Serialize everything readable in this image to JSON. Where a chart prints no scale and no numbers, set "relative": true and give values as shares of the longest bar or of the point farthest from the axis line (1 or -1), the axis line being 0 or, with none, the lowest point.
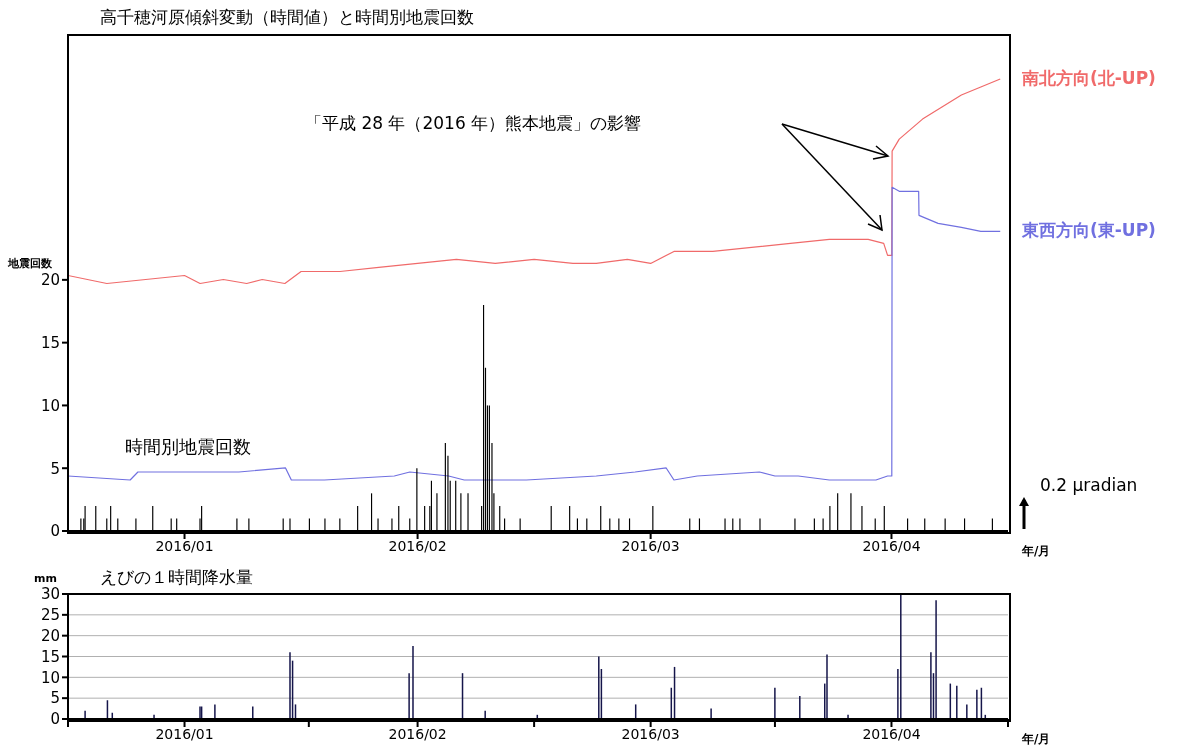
{
  "chart_data": [
    {
      "type": "line",
      "relative": true,
      "tick_labels": "x",
      "title": "高千穂河原傾斜変動（時間値）と時間別地震回数",
      "xlim": [
        "2016-01-01",
        "2016-05-01"
      ],
      "xticks": [
        {
          "value": "2016-01-16",
          "label": "2016/01"
        },
        {
          "value": "2016-02-15",
          "label": "2016/02"
        },
        {
          "value": "2016-03-16",
          "label": "2016/03"
        },
        {
          "value": "2016-04-16",
          "label": "2016/04"
        }
      ],
      "annotations": [
        "「平成 28 年（2016 年）熊本地震」の影響",
        "0.2 μradian"
      ],
      "series": [
        {
          "name": "南北方向(北-UP)",
          "color": "#f06a6a",
          "x": [
            "2016-01-01T00:00",
            "2016-01-06T00:00",
            "2016-01-11T00:00",
            "2016-01-16T00:00",
            "2016-01-18T00:00",
            "2016-01-21T00:00",
            "2016-01-24T00:00",
            "2016-01-26T00:00",
            "2016-01-28T22:00",
            "2016-01-31T00:00",
            "2016-02-02T00:00",
            "2016-02-05T00:00",
            "2016-02-10T00:00",
            "2016-02-15T00:00",
            "2016-02-20T00:00",
            "2016-02-25T00:00",
            "2016-03-01T00:00",
            "2016-03-06T00:00",
            "2016-03-09T00:00",
            "2016-03-13T00:00",
            "2016-03-16T00:00",
            "2016-03-19T00:00",
            "2016-03-24T00:00",
            "2016-03-29T00:00",
            "2016-04-03T00:00",
            "2016-04-08T00:00",
            "2016-04-13T00:00",
            "2016-04-15T00:00",
            "2016-04-15T12:00",
            "2016-04-16T01:00",
            "2016-04-16T02:00",
            "2016-04-17T00:00",
            "2016-04-20T00:00",
            "2016-04-22T12:00",
            "2016-04-25T00:00",
            "2016-04-27T12:00",
            "2016-04-30T00:00"
          ],
          "values": [
            0.51,
            0.49,
            0.5,
            0.51,
            0.49,
            0.5,
            0.49,
            0.5,
            0.49,
            0.52,
            0.52,
            0.52,
            0.53,
            0.54,
            0.55,
            0.54,
            0.55,
            0.54,
            0.54,
            0.55,
            0.54,
            0.57,
            0.57,
            0.58,
            0.59,
            0.6,
            0.6,
            0.59,
            0.56,
            0.56,
            0.82,
            0.85,
            0.9,
            0.93,
            0.96,
            0.98,
            1
          ]
        },
        {
          "name": "東西方向(東-UP)",
          "color": "#7070e0",
          "x": [
            "2016-01-01T00:00",
            "2016-01-09T00:00",
            "2016-01-10T00:00",
            "2016-01-18T00:00",
            "2016-01-23T00:00",
            "2016-01-29T00:00",
            "2016-01-29T18:00",
            "2016-02-03T00:00",
            "2016-02-12T00:00",
            "2016-02-14T00:00",
            "2016-02-19T00:00",
            "2016-02-21T00:00",
            "2016-02-29T00:00",
            "2016-03-09T00:00",
            "2016-03-14T00:00",
            "2016-03-18T00:00",
            "2016-03-19T00:00",
            "2016-03-22T00:00",
            "2016-03-30T00:00",
            "2016-04-01T00:00",
            "2016-04-04T00:00",
            "2016-04-08T00:00",
            "2016-04-14T00:00",
            "2016-04-15T12:00",
            "2016-04-16T01:00",
            "2016-04-16T02:00",
            "2016-04-17T00:00",
            "2016-04-18T00:00",
            "2016-04-19T12:00",
            "2016-04-19T13:00",
            "2016-04-22T00:00",
            "2016-04-25T00:00",
            "2016-04-27T12:00",
            "2016-04-30T00:00"
          ],
          "values": [
            0.01,
            0,
            0.02,
            0.02,
            0.02,
            0.03,
            0,
            0,
            0.01,
            0.02,
            0.01,
            0,
            0,
            0.01,
            0.02,
            0.03,
            0,
            0.01,
            0.02,
            0.01,
            0.01,
            0,
            0,
            0.01,
            0.01,
            0.73,
            0.72,
            0.72,
            0.72,
            0.66,
            0.64,
            0.63,
            0.62,
            0.62
          ]
        }
      ]
    },
    {
      "type": "bar",
      "ylabel": "地震回数",
      "xlabel": "年/月",
      "xlim": [
        "2016-01-01",
        "2016-05-01"
      ],
      "ylim": [
        0,
        39.5
      ],
      "yticks": [
        0,
        5,
        10,
        15,
        20
      ],
      "series": [
        {
          "name": "時間別地震回数",
          "color": "#000000",
          "x": [
            "2016-01-02T16:00",
            "2016-01-03T01:00",
            "2016-01-03T05:00",
            "2016-01-04T14:00",
            "2016-01-06T00:00",
            "2016-01-06T12:00",
            "2016-01-07T10:00",
            "2016-01-09T18:00",
            "2016-01-11T22:00",
            "2016-01-14T07:00",
            "2016-01-15T00:00",
            "2016-01-18T00:00",
            "2016-01-18T05:00",
            "2016-01-22T18:00",
            "2016-01-24T07:00",
            "2016-01-28T17:00",
            "2016-01-29T14:00",
            "2016-02-01T02:00",
            "2016-02-03T02:00",
            "2016-02-05T00:00",
            "2016-02-07T07:00",
            "2016-02-09T02:00",
            "2016-02-09T22:00",
            "2016-02-11T17:00",
            "2016-02-12T14:00",
            "2016-02-14T00:00",
            "2016-02-14T22:00",
            "2016-02-15T22:00",
            "2016-02-16T14:00",
            "2016-02-16T19:00",
            "2016-02-17T12:00",
            "2016-02-18T14:00",
            "2016-02-18T22:00",
            "2016-02-19T05:00",
            "2016-02-19T22:00",
            "2016-02-20T14:00",
            "2016-02-21T12:00",
            "2016-02-23T06:00",
            "2016-02-23T12:00",
            "2016-02-23T18:00",
            "2016-02-24T00:00",
            "2016-02-24T06:00",
            "2016-02-24T14:00",
            "2016-02-24T20:00",
            "2016-02-25T14:00",
            "2016-02-26T05:00",
            "2016-02-28T05:00",
            "2016-03-03T05:00",
            "2016-03-05T14:00",
            "2016-03-06T14:00",
            "2016-03-07T19:00",
            "2016-03-09T14:00",
            "2016-03-10T18:00",
            "2016-03-11T22:00",
            "2016-03-13T07:00",
            "2016-03-16T07:00",
            "2016-03-21T01:00",
            "2016-03-22T07:00",
            "2016-03-25T14:00",
            "2016-03-26T14:00",
            "2016-03-27T12:00",
            "2016-03-30T02:00",
            "2016-04-03T14:00",
            "2016-04-06T02:00",
            "2016-04-07T05:00",
            "2016-04-08T02:00",
            "2016-04-09T02:00",
            "2016-04-10T19:00",
            "2016-04-12T05:00",
            "2016-04-13T22:00",
            "2016-04-15T02:00",
            "2016-04-18T02:00",
            "2016-04-20T07:00",
            "2016-04-22T22:00",
            "2016-04-25T10:00",
            "2016-04-29T00:00"
          ],
          "values": [
            1,
            1,
            2,
            2,
            1,
            2,
            1,
            1,
            2,
            1,
            1,
            1,
            2,
            1,
            1,
            1,
            1,
            1,
            1,
            1,
            2,
            3,
            1,
            1,
            2,
            1,
            5,
            2,
            2,
            4,
            3,
            7,
            6,
            4,
            4,
            3,
            3,
            2,
            18,
            13,
            10,
            10,
            7,
            3,
            2,
            1,
            1,
            2,
            2,
            1,
            1,
            2,
            1,
            1,
            1,
            2,
            1,
            1,
            1,
            1,
            1,
            1,
            1,
            1,
            1,
            2,
            3,
            3,
            2,
            1,
            2,
            1,
            1,
            1,
            1,
            1
          ]
        }
      ]
    },
    {
      "type": "bar",
      "title": "えびの１時間降水量",
      "ylabel": "mm",
      "xlabel": "年/月",
      "xlim": [
        "2016-01-01",
        "2016-05-01"
      ],
      "xticks": [
        {
          "value": "2016-01-01",
          "label": null
        },
        {
          "value": "2016-01-16",
          "label": "2016/01"
        },
        {
          "value": "2016-02-01",
          "label": null
        },
        {
          "value": "2016-02-15",
          "label": "2016/02"
        },
        {
          "value": "2016-03-01",
          "label": null
        },
        {
          "value": "2016-03-16",
          "label": "2016/03"
        },
        {
          "value": "2016-04-01",
          "label": null
        },
        {
          "value": "2016-04-16",
          "label": "2016/04"
        },
        {
          "value": "2016-05-01",
          "label": null
        }
      ],
      "ylim": [
        0,
        30
      ],
      "yticks": [
        0,
        5,
        10,
        15,
        20,
        25,
        30
      ],
      "grid": "y",
      "color": "#15154a",
      "x": [
        "2016-01-03T05:00",
        "2016-01-06T02:00",
        "2016-01-06T17:00",
        "2016-01-12T02:00",
        "2016-01-18T00:00",
        "2016-01-18T05:00",
        "2016-01-19T22:00",
        "2016-01-24T19:00",
        "2016-01-29T14:00",
        "2016-01-29T22:00",
        "2016-01-30T07:00",
        "2016-02-13T22:00",
        "2016-02-14T10:00",
        "2016-02-20T19:00",
        "2016-02-23T17:00",
        "2016-03-01T10:00",
        "2016-03-09T08:00",
        "2016-03-09T16:00",
        "2016-03-14T02:00",
        "2016-03-18T16:00",
        "2016-03-19T02:00",
        "2016-03-23T19:00",
        "2016-04-01T00:00",
        "2016-04-04T05:00",
        "2016-04-07T10:00",
        "2016-04-07T17:00",
        "2016-04-10T10:00",
        "2016-04-16T20:00",
        "2016-04-17T05:00",
        "2016-04-21T02:00",
        "2016-04-21T10:00",
        "2016-04-21T18:00",
        "2016-04-23T14:00",
        "2016-04-24T10:00",
        "2016-04-25T17:00",
        "2016-04-27T00:00",
        "2016-04-27T14:00",
        "2016-04-28T02:00"
      ],
      "values": [
        2,
        4.5,
        1.5,
        1,
        3,
        3,
        3.5,
        3,
        16,
        14,
        3.5,
        11,
        17.5,
        11,
        2,
        1,
        15,
        12,
        3.5,
        7.5,
        12.5,
        2.5,
        7.5,
        5.5,
        8.5,
        15.5,
        1,
        12,
        30,
        16,
        11,
        28.5,
        8.5,
        8,
        3.5,
        7,
        7.5,
        1
      ]
    }
  ]
}
